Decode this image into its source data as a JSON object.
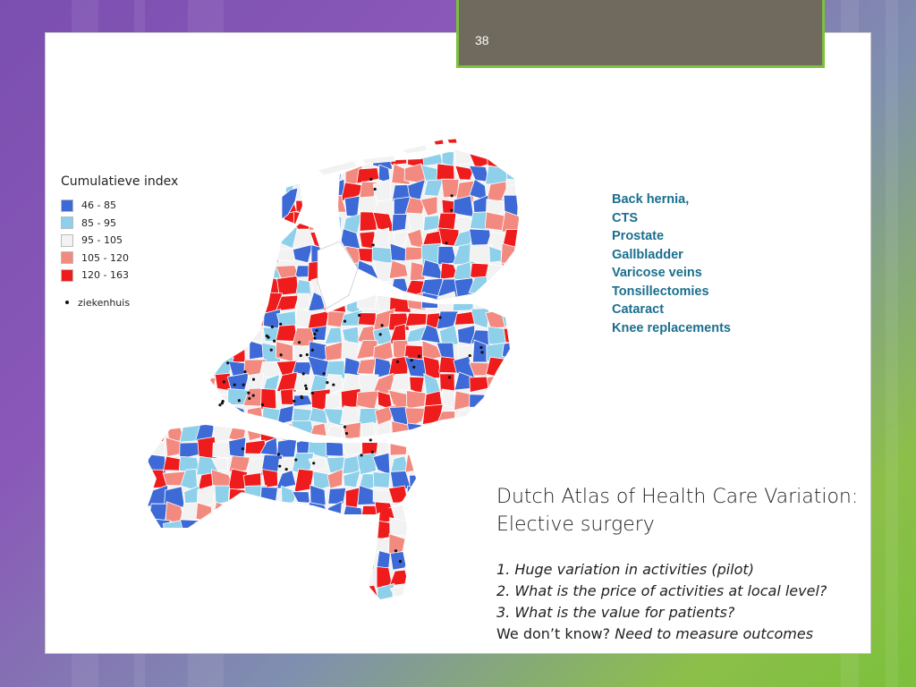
{
  "slide": {
    "page_number": "38"
  },
  "legend": {
    "title": "Cumulatieve index",
    "classes": [
      {
        "label": "46 - 85",
        "color": "#3d6ad6"
      },
      {
        "label": "85 - 95",
        "color": "#8ecfea"
      },
      {
        "label": "95 - 105",
        "color": "#f2f2f2"
      },
      {
        "label": "105 - 120",
        "color": "#f28a80"
      },
      {
        "label": "120 - 163",
        "color": "#ee1c1c"
      }
    ],
    "hospital_label": "ziekenhuis"
  },
  "procedures": [
    "Back hernia,",
    "CTS",
    "Prostate",
    "Gallbladder",
    "Varicose veins",
    "Tonsillectomies",
    "Cataract",
    "Knee replacements"
  ],
  "headline": {
    "line1": "Dutch Atlas of Health Care Variation:",
    "line2": "Elective surgery"
  },
  "points": {
    "p1": "1. Huge variation in activities (pilot)",
    "p2": "2. What is the price of activities at local level?",
    "p3": "3. What is the value for patients?",
    "p4_plain": "We don’t know?",
    "p4_italic": "Need to measure outcomes"
  },
  "colors": {
    "accent_green": "#7cc03c",
    "tab_bg": "#6f6a5d",
    "procedure_text": "#1a6f8e"
  }
}
